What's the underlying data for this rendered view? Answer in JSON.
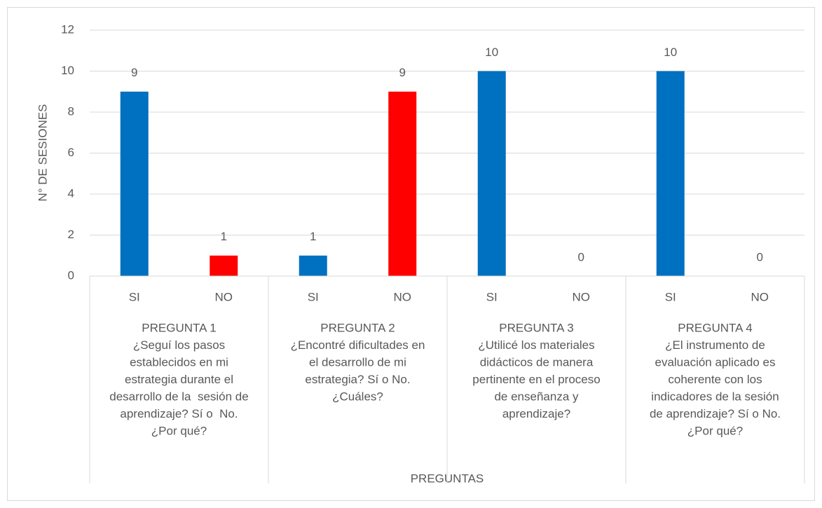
{
  "chart_data": {
    "type": "bar",
    "categories": [
      "SI",
      "NO",
      "SI",
      "NO",
      "SI",
      "NO",
      "SI",
      "NO"
    ],
    "values": [
      9,
      1,
      1,
      9,
      10,
      0,
      10,
      0
    ],
    "colors": [
      "#0070c0",
      "#ff0000",
      "#0070c0",
      "#ff0000",
      "#0070c0",
      "#ff0000",
      "#0070c0",
      "#ff0000"
    ],
    "groups": [
      {
        "lines": [
          "PREGUNTA 1",
          "¿Seguí los pasos",
          "establecidos en mi",
          "estrategia durante el",
          "desarrollo de la  sesión de",
          "aprendizaje? Sí o  No.",
          "¿Por qué?"
        ]
      },
      {
        "lines": [
          "PREGUNTA 2",
          "¿Encontré dificultades en",
          "el desarrollo de mi",
          "estrategia? Sí o No.",
          "¿Cuáles?"
        ]
      },
      {
        "lines": [
          "PREGUNTA 3",
          "¿Utilicé los materiales",
          "didácticos de manera",
          "pertinente en el proceso",
          "de enseñanza y",
          "aprendizaje?"
        ]
      },
      {
        "lines": [
          "PREGUNTA 4",
          "¿El instrumento de",
          "evaluación aplicado es",
          "coherente con los",
          "indicadores de la sesión",
          "de aprendizaje? Sí o No.",
          "¿Por qué?"
        ]
      }
    ],
    "x_label": "PREGUNTAS",
    "y_label": "N° DE SESIONES",
    "ylim": [
      0,
      12
    ],
    "yticks": [
      0,
      2,
      4,
      6,
      8,
      10,
      12
    ],
    "grid": true
  }
}
